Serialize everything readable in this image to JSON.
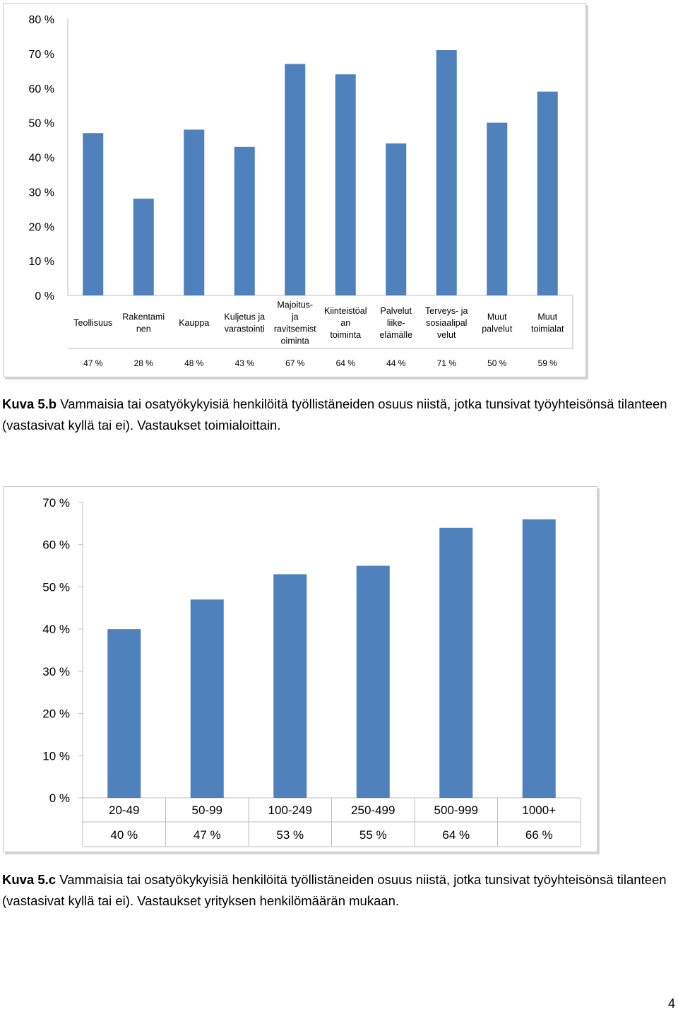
{
  "charts": {
    "chart1": {
      "y_ticks": [
        "80 %",
        "70 %",
        "60 %",
        "50 %",
        "40 %",
        "30 %",
        "20 %",
        "10 %",
        "0 %"
      ],
      "table_row": [
        "47 %",
        "28 %",
        "48 %",
        "43 %",
        "67 %",
        "64 %",
        "44 %",
        "71 %",
        "50 %",
        "59 %"
      ]
    },
    "chart2": {
      "y_ticks": [
        "70 %",
        "60 %",
        "50 %",
        "40 %",
        "30 %",
        "20 %",
        "10 %",
        "0 %"
      ],
      "table_row": [
        "40 %",
        "47 %",
        "53 %",
        "55 %",
        "64 %",
        "66 %"
      ]
    }
  },
  "chart_data": [
    {
      "type": "bar",
      "categories": [
        [
          "Teollisuus"
        ],
        [
          "Rakentami",
          "nen"
        ],
        [
          "Kauppa"
        ],
        [
          "Kuljetus ja",
          "varastointi"
        ],
        [
          "Majoitus-",
          "ja",
          "ravitsemist",
          "oiminta"
        ],
        [
          "Kiinteistöal",
          "an",
          "toiminta"
        ],
        [
          "Palvelut",
          "liike-",
          "elämälle"
        ],
        [
          "Terveys- ja",
          "sosiaalipal",
          "velut"
        ],
        [
          "Muut",
          "palvelut"
        ],
        [
          "Muut",
          "toimialat"
        ]
      ],
      "values": [
        47,
        28,
        48,
        43,
        67,
        64,
        44,
        71,
        50,
        59
      ],
      "ylim": [
        0,
        80
      ],
      "color": "#4f81bd"
    },
    {
      "type": "bar",
      "categories": [
        "20-49",
        "50-99",
        "100-249",
        "250-499",
        "500-999",
        "1000+"
      ],
      "values": [
        40,
        47,
        53,
        55,
        64,
        66
      ],
      "ylim": [
        0,
        70
      ],
      "color": "#4f81bd"
    }
  ],
  "captions": {
    "caption1_label": "Kuva 5.b",
    "caption1_text": " Vammaisia tai osatyökykyisiä henkilöitä työllistäneiden osuus niistä, jotka tunsivat työyhteisönsä tilanteen (vastasivat kyllä tai ei). Vastaukset toimialoittain.",
    "caption2_label": "Kuva 5.c",
    "caption2_text": " Vammaisia tai osatyökykyisiä henkilöitä työllistäneiden osuus niistä, jotka tunsivat työyhteisönsä tilanteen (vastasivat kyllä tai ei). Vastaukset yrityksen henkilömäärän mukaan."
  },
  "page_number": "4"
}
